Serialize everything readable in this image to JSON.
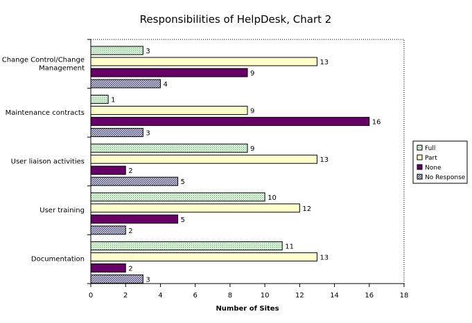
{
  "chart_data": {
    "type": "bar",
    "orientation": "horizontal",
    "title": "Responsibilities of HelpDesk, Chart 2",
    "xlabel": "Number of Sites",
    "ylabel": "",
    "xlim": [
      0,
      18
    ],
    "xticks": [
      0,
      2,
      4,
      6,
      8,
      10,
      12,
      14,
      16,
      18
    ],
    "grid": false,
    "legend_position": "right",
    "categories": [
      [
        "Change Control/Change",
        "Management"
      ],
      [
        "Maintenance contracts"
      ],
      [
        "User liaison activities"
      ],
      [
        "User training"
      ],
      [
        "Documentation"
      ]
    ],
    "series": [
      {
        "name": "Full",
        "values": [
          3,
          1,
          9,
          10,
          11
        ],
        "color": "#d8f2d8",
        "pattern": "dots"
      },
      {
        "name": "Part",
        "values": [
          13,
          9,
          13,
          12,
          13
        ],
        "color": "#ffffcc",
        "pattern": "none"
      },
      {
        "name": "None",
        "values": [
          9,
          16,
          2,
          5,
          2
        ],
        "color": "#660066",
        "pattern": "none"
      },
      {
        "name": "No Response",
        "values": [
          4,
          3,
          5,
          2,
          3
        ],
        "color": "#9999bb",
        "pattern": "crosshatch"
      }
    ]
  }
}
